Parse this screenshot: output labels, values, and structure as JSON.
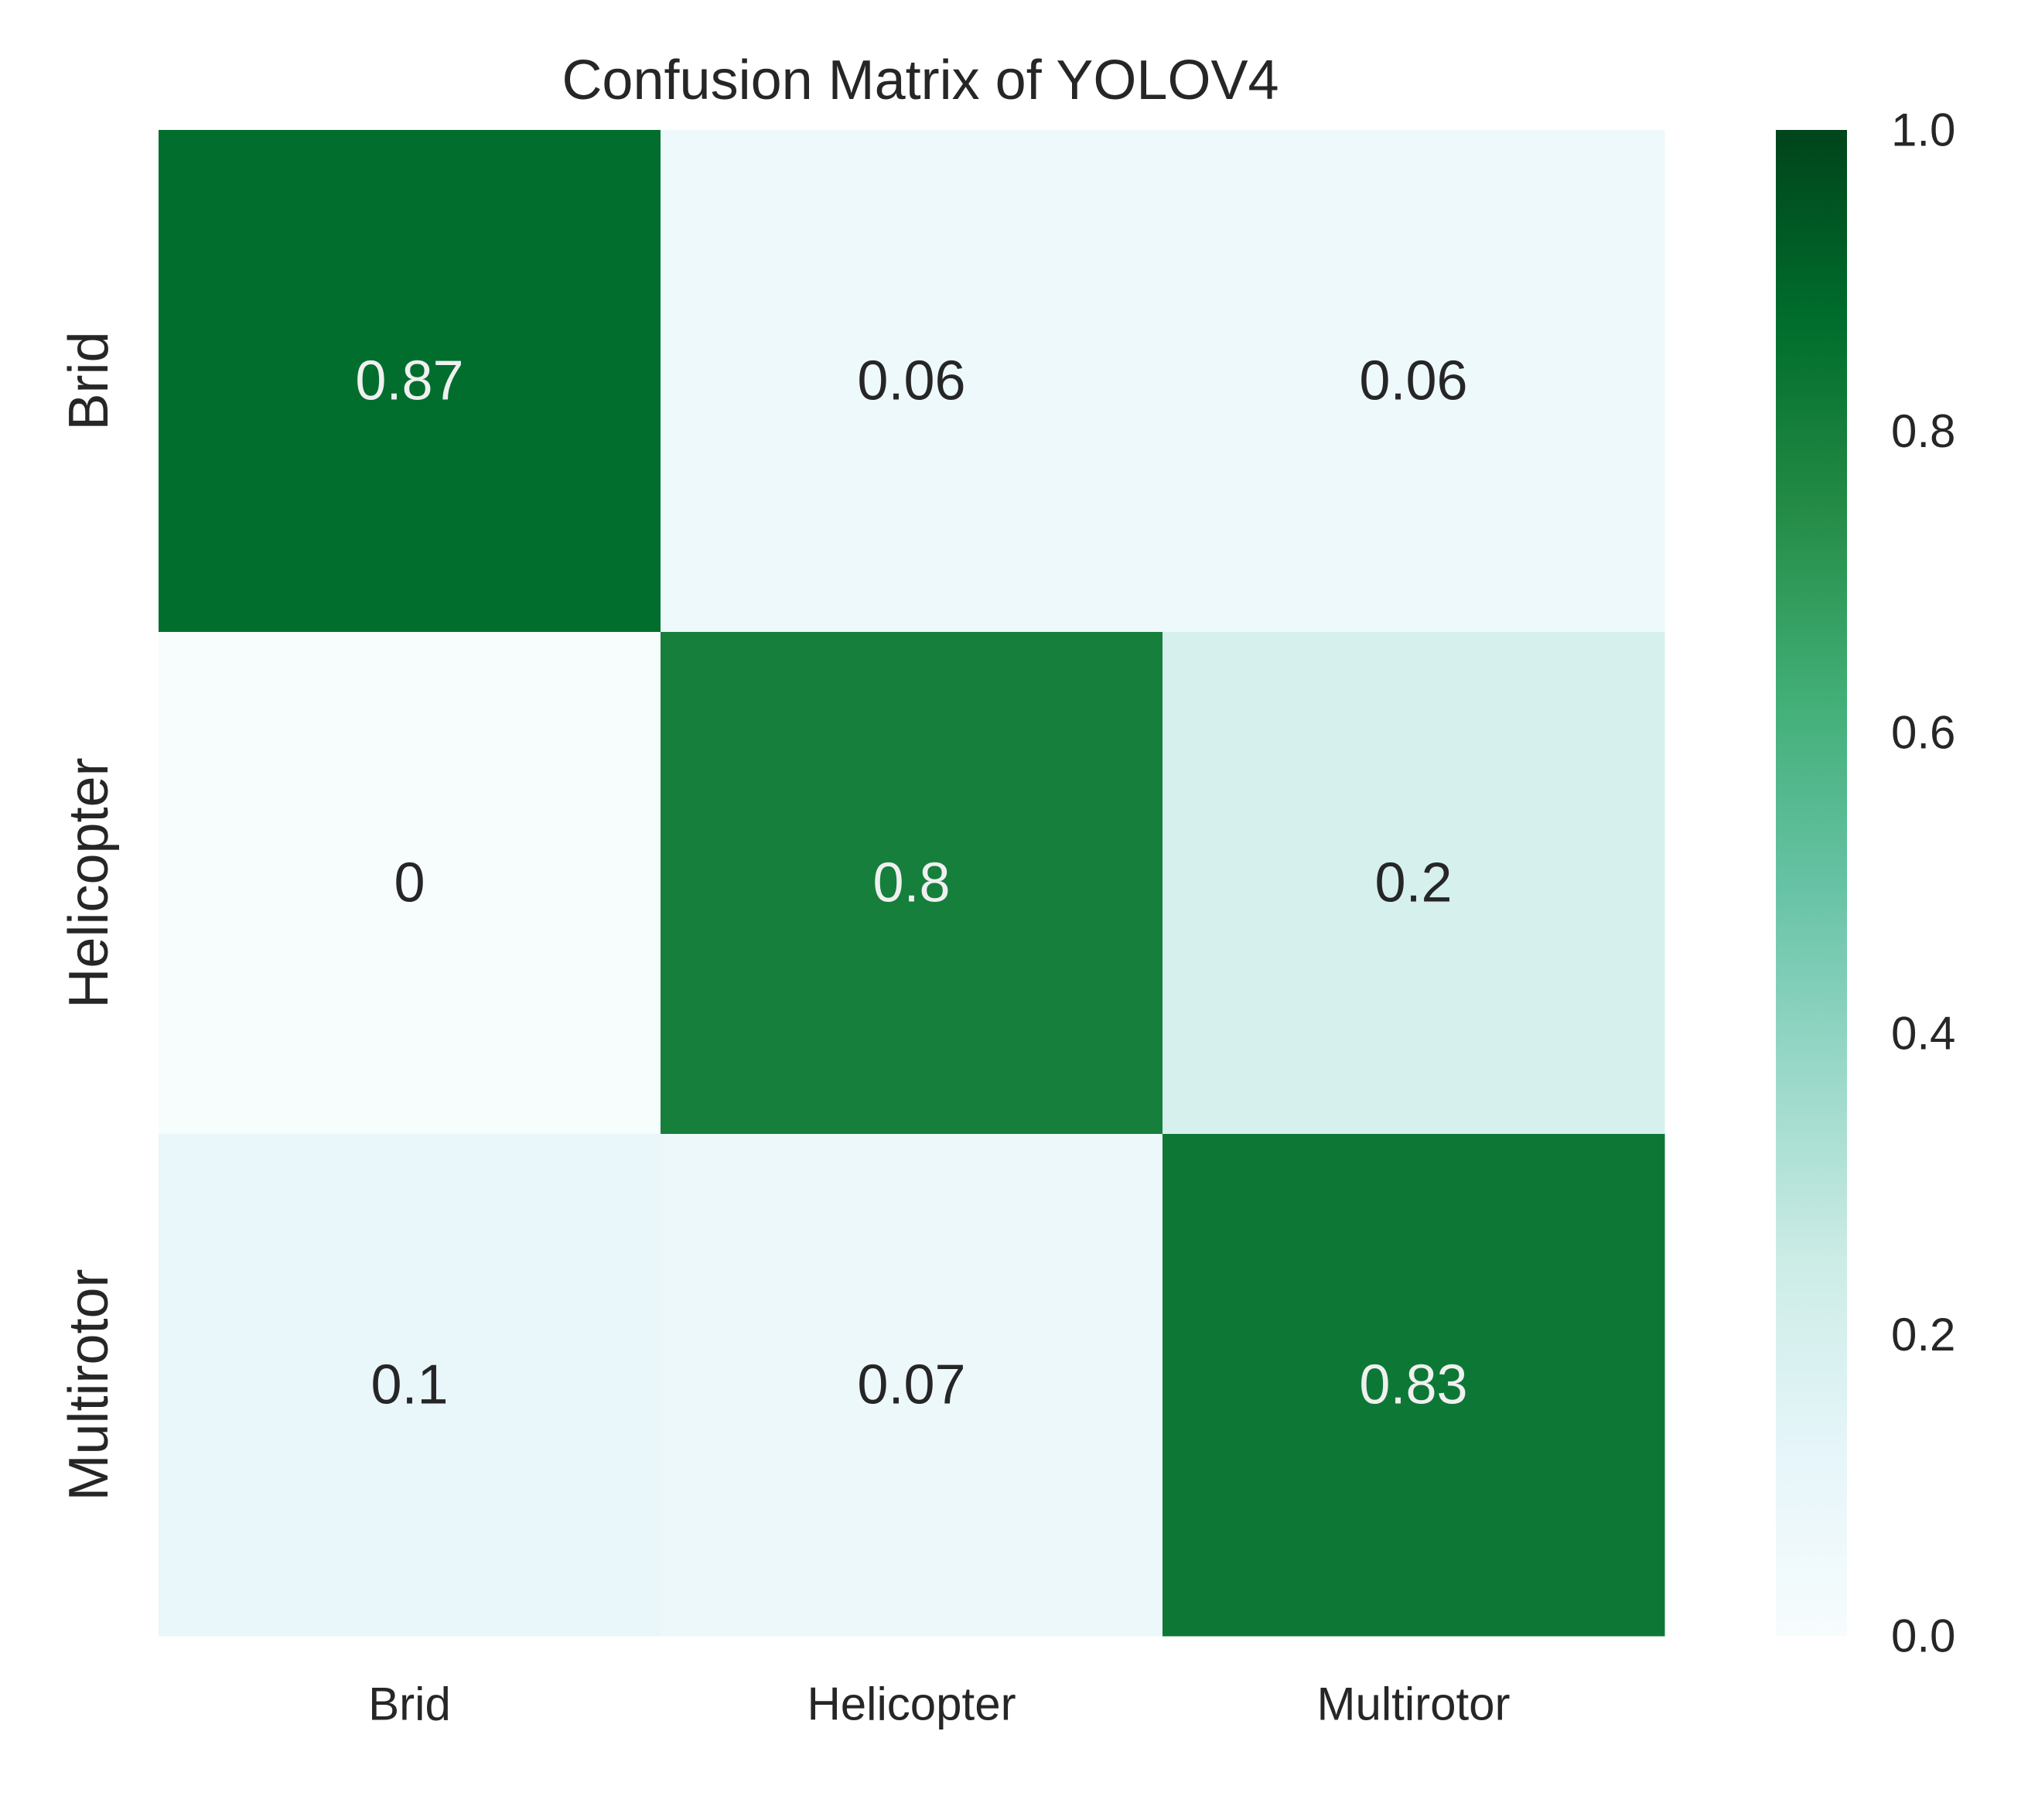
{
  "chart_data": {
    "type": "heatmap",
    "title": "Confusion Matrix of YOLOV4",
    "xlabel": "",
    "ylabel": "",
    "x_categories": [
      "Brid",
      "Helicopter",
      "Multirotor"
    ],
    "y_categories": [
      "Brid",
      "Helicopter",
      "Multirotor"
    ],
    "cell_labels": [
      [
        "0.87",
        "0.06",
        "0.06"
      ],
      [
        "0",
        "0.8",
        "0.2"
      ],
      [
        "0.1",
        "0.07",
        "0.83"
      ]
    ],
    "values": [
      [
        0.87,
        0.06,
        0.06
      ],
      [
        0.0,
        0.8,
        0.2
      ],
      [
        0.1,
        0.07,
        0.83
      ]
    ],
    "colormap": "BuGn",
    "colorbar": {
      "range": [
        0.0,
        1.0
      ],
      "tick_values": [
        0.0,
        0.2,
        0.4,
        0.6,
        0.8,
        1.0
      ],
      "tick_labels": [
        "0.0",
        "0.2",
        "0.4",
        "0.6",
        "0.8",
        "1.0"
      ]
    },
    "colors": {
      "low": "#f7fcfd",
      "high": "#00441b",
      "light_text": "#f0f0f0",
      "dark_text": "#262626"
    },
    "grid": false
  }
}
